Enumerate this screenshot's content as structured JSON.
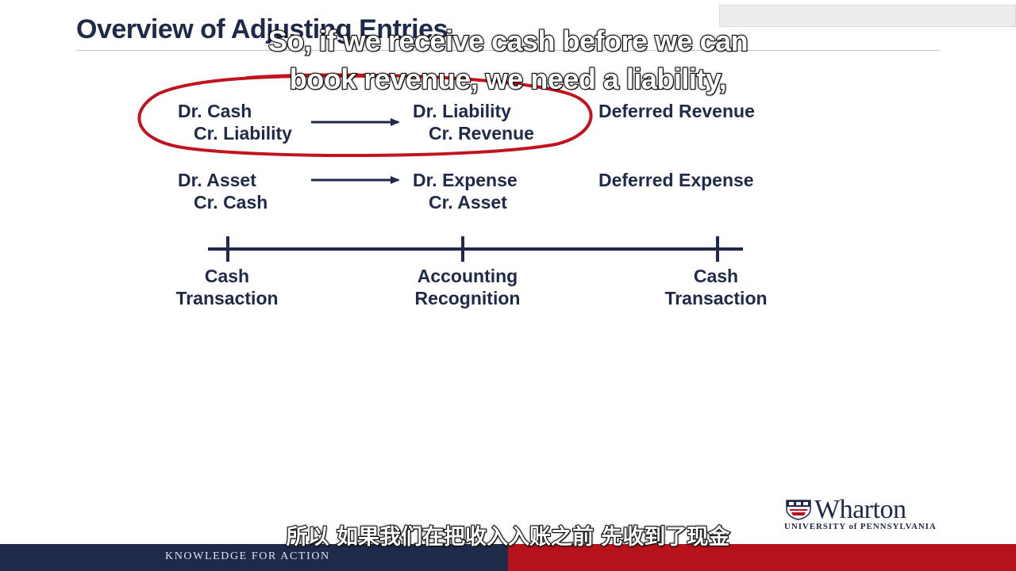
{
  "slide": {
    "title": "Overview of Adjusting Entries",
    "corner_text": "",
    "rows": [
      {
        "left": {
          "debit": "Dr. Cash",
          "credit": "Cr. Liability"
        },
        "right": {
          "debit": "Dr. Liability",
          "credit": "Cr. Revenue"
        },
        "label": "Deferred Revenue",
        "circled": true
      },
      {
        "left": {
          "debit": "Dr. Asset",
          "credit": "Cr. Cash"
        },
        "right": {
          "debit": "Dr. Expense",
          "credit": "Cr. Asset"
        },
        "label": "Deferred Expense",
        "circled": false
      }
    ],
    "timeline": [
      {
        "line1": "Cash",
        "line2": "Transaction"
      },
      {
        "line1": "Accounting",
        "line2": "Recognition"
      },
      {
        "line1": "Cash",
        "line2": "Transaction"
      }
    ]
  },
  "captions": {
    "english_line1": "So, if we receive cash before we can",
    "english_line2": "book revenue, we need a liability,",
    "chinese": "所以 如果我们在把收入入账之前 先收到了现金"
  },
  "logo": {
    "wordmark": "Wharton",
    "subline": "UNIVERSITY of PENNSYLVANIA"
  },
  "footer": {
    "tagline": "KNOWLEDGE FOR ACTION"
  },
  "colors": {
    "navy": "#1f2a4a",
    "red": "#b5121b",
    "circle": "#c0141f"
  }
}
